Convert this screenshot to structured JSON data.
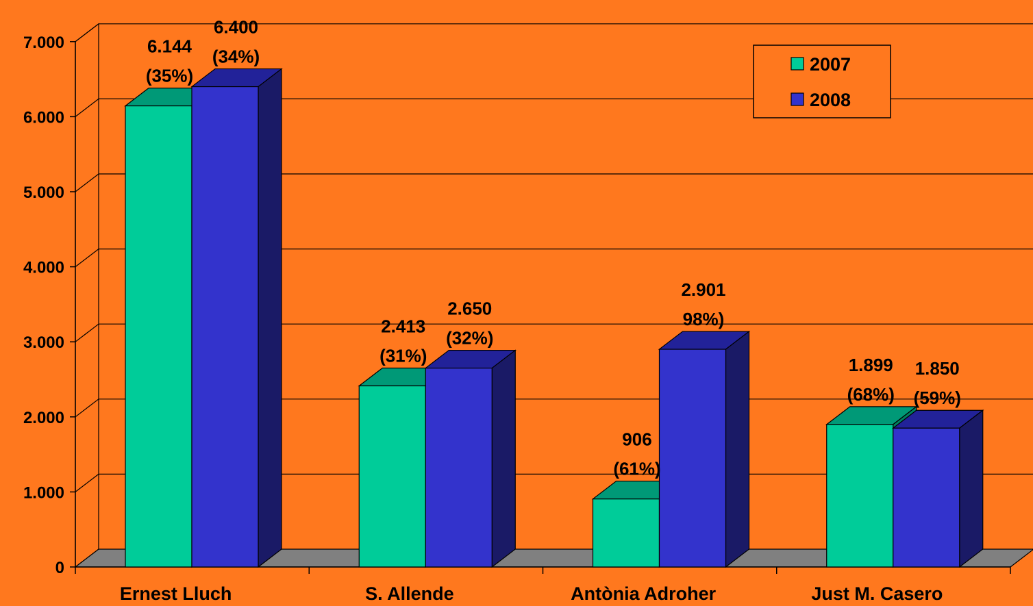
{
  "chart_data": {
    "type": "bar",
    "title": "",
    "xlabel": "",
    "ylabel": "",
    "ylim": [
      0,
      7000
    ],
    "yticks": [
      {
        "value": 0,
        "label": "0"
      },
      {
        "value": 1000,
        "label": "1.000"
      },
      {
        "value": 2000,
        "label": "2.000"
      },
      {
        "value": 3000,
        "label": "3.000"
      },
      {
        "value": 4000,
        "label": "4.000"
      },
      {
        "value": 5000,
        "label": "5.000"
      },
      {
        "value": 6000,
        "label": "6.000"
      },
      {
        "value": 7000,
        "label": "7.000"
      }
    ],
    "grid": true,
    "legend_position": "top-right",
    "categories": [
      "Ernest Lluch",
      "S. Allende",
      "Antònia Adroher",
      "Just M. Casero"
    ],
    "series": [
      {
        "name": "2007",
        "color": "#00CC99",
        "top_color": "#009977",
        "side_color": "#008060",
        "values": [
          6144,
          2413,
          906,
          1899
        ],
        "labels": [
          [
            "6.144",
            "(35%)"
          ],
          [
            "2.413",
            "(31%)"
          ],
          [
            "906",
            "(61%)"
          ],
          [
            "1.899",
            "(68%)"
          ]
        ]
      },
      {
        "name": "2008",
        "color": "#3333CC",
        "top_color": "#222299",
        "side_color": "#1A1A66",
        "values": [
          6400,
          2650,
          2901,
          1850
        ],
        "labels": [
          [
            "6.400",
            "(34%)"
          ],
          [
            "2.650",
            "(32%)"
          ],
          [
            "2.901",
            "98%)"
          ],
          [
            "1.850",
            "(59%)"
          ]
        ]
      }
    ]
  }
}
